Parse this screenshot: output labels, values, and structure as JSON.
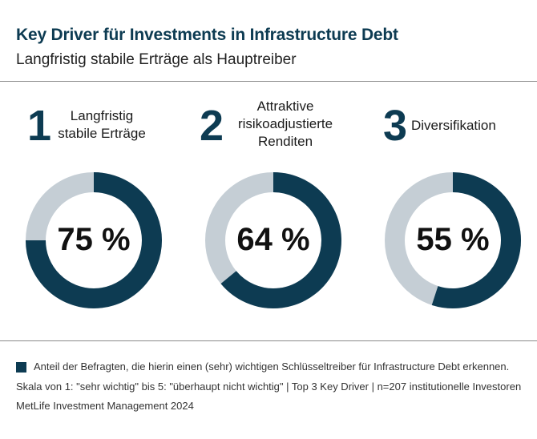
{
  "header": {
    "title": "Key Driver für Investments in Infrastructure Debt",
    "subtitle": "Langfristig stabile Erträge als Hauptreiber"
  },
  "drivers": [
    {
      "number": "1",
      "label_lines": [
        "Langfristig",
        "stabile Erträge"
      ],
      "value_text": "75 %"
    },
    {
      "number": "2",
      "label_lines": [
        "Attraktive",
        "risikoadjustierte",
        "Renditen"
      ],
      "value_text": "64 %"
    },
    {
      "number": "3",
      "label_lines": [
        "Diversifikation"
      ],
      "value_text": "55 %"
    }
  ],
  "footer": {
    "legend": "Anteil der Befragten, die hierin einen (sehr) wichtigen Schlüsseltreiber für Infrastructure Debt erkennen.",
    "scale": "Skala von 1: \"sehr wichtig\" bis 5: \"überhaupt nicht wichtig\" | Top 3 Key Driver | n=207 institutionelle Investoren",
    "source": "MetLife Investment Management 2024"
  },
  "chart_data": {
    "type": "pie",
    "subtype": "donut",
    "categories": [
      "Langfristig stabile Erträge",
      "Attraktive risikoadjustierte Renditen",
      "Diversifikation"
    ],
    "values": [
      75,
      64,
      55
    ],
    "unit": "%",
    "colors": {
      "filled": "#0d3b52",
      "remaining": "#c5ced5"
    }
  }
}
